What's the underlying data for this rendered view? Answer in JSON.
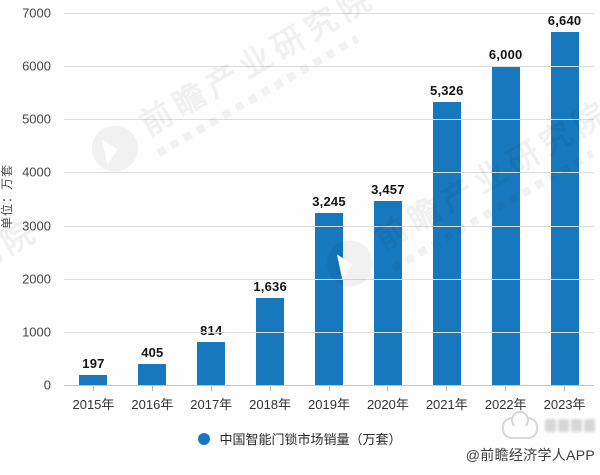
{
  "chart_data": {
    "type": "bar",
    "title": "",
    "categories": [
      "2015年",
      "2016年",
      "2017年",
      "2018年",
      "2019年",
      "2020年",
      "2021年",
      "2022年",
      "2023年"
    ],
    "values": [
      197,
      405,
      814,
      1636,
      3245,
      3457,
      5326,
      6000,
      6640
    ],
    "value_labels": [
      "197",
      "405",
      "814",
      "1,636",
      "3,245",
      "3,457",
      "5,326",
      "6,000",
      "6,640"
    ],
    "xlabel": "",
    "ylabel": "单位：万套",
    "ylim": [
      0,
      7000
    ],
    "ytick_step": 1000,
    "yticks_display": [
      "7000",
      "6000",
      "5000",
      "4000",
      "3000",
      "2000",
      "1000",
      "0"
    ],
    "grid": true,
    "legend": "中国智能门锁市场销量（万套）",
    "legend_position": "bottom-center",
    "bar_color": "#1878be"
  },
  "watermark": {
    "brand_text": "前瞻产业研究院"
  },
  "footer": {
    "credit": "@前瞻经济学人APP"
  }
}
